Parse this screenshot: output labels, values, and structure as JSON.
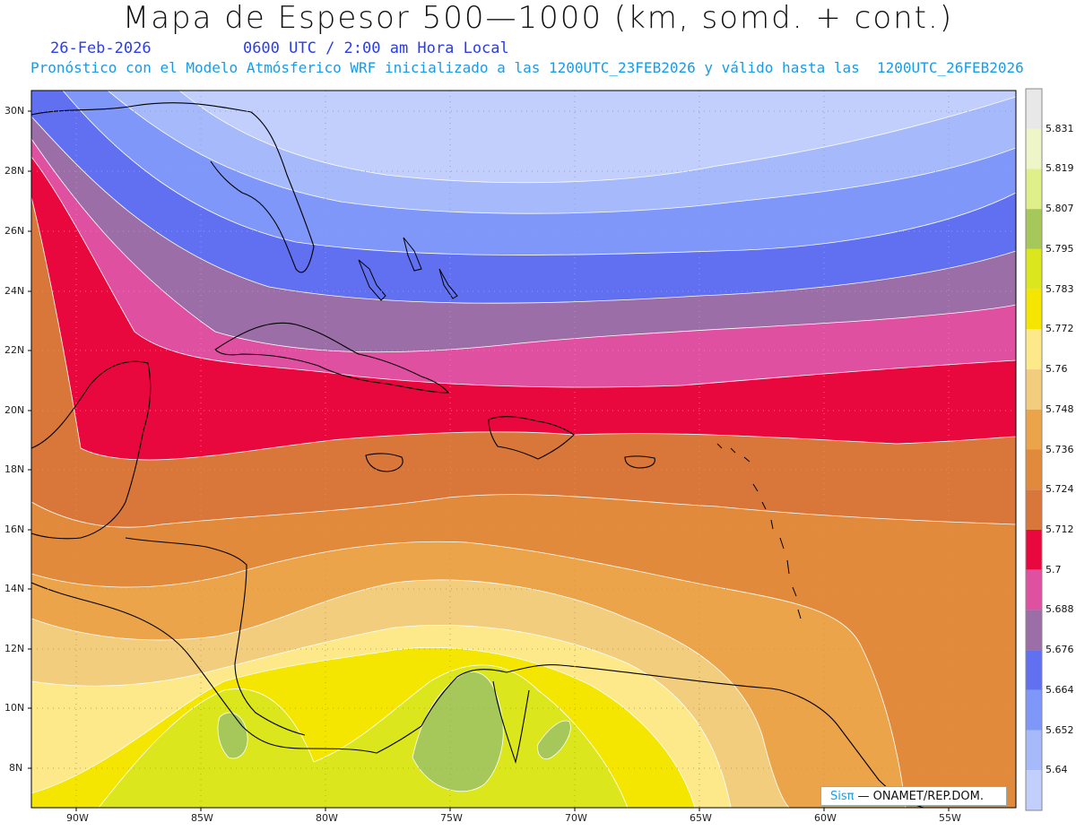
{
  "title": "Mapa de Espesor 500—1000 (km, somd. + cont.)",
  "date_label": "26-Feb-2026",
  "time_label": "0600 UTC / 2:00 am Hora Local",
  "forecast_info": "Pronóstico con el Modelo Atmósferico WRF inicializado a las 1200UTC_23FEB2026 y válido hasta las  1200UTC_26FEB2026",
  "latitude_labels": [
    "30N",
    "28N",
    "26N",
    "24N",
    "22N",
    "20N",
    "18N",
    "16N",
    "14N",
    "12N",
    "10N",
    "8N"
  ],
  "longitude_labels": [
    "90W",
    "85W",
    "80W",
    "75W",
    "70W",
    "65W",
    "60W",
    "55W"
  ],
  "colorbar": {
    "levels": [
      "5.831",
      "5.819",
      "5.807",
      "5.795",
      "5.783",
      "5.772",
      "5.76",
      "5.748",
      "5.736",
      "5.724",
      "5.712",
      "5.7",
      "5.688",
      "5.676",
      "5.664",
      "5.652",
      "5.64"
    ],
    "colors": [
      "#e8e8e8",
      "#eef5c8",
      "#dff08a",
      "#a6c85a",
      "#dce61c",
      "#f4e600",
      "#fde98a",
      "#f3cd7e",
      "#eba449",
      "#e28a3c",
      "#d9773a",
      "#e8083e",
      "#e050a0",
      "#9b6ea8",
      "#6070f0",
      "#7f97f8",
      "#a6b9fb",
      "#c2cffd"
    ]
  },
  "credit": {
    "logo": "Sisπ",
    "text": "— ONAMET/REP.DOM."
  }
}
